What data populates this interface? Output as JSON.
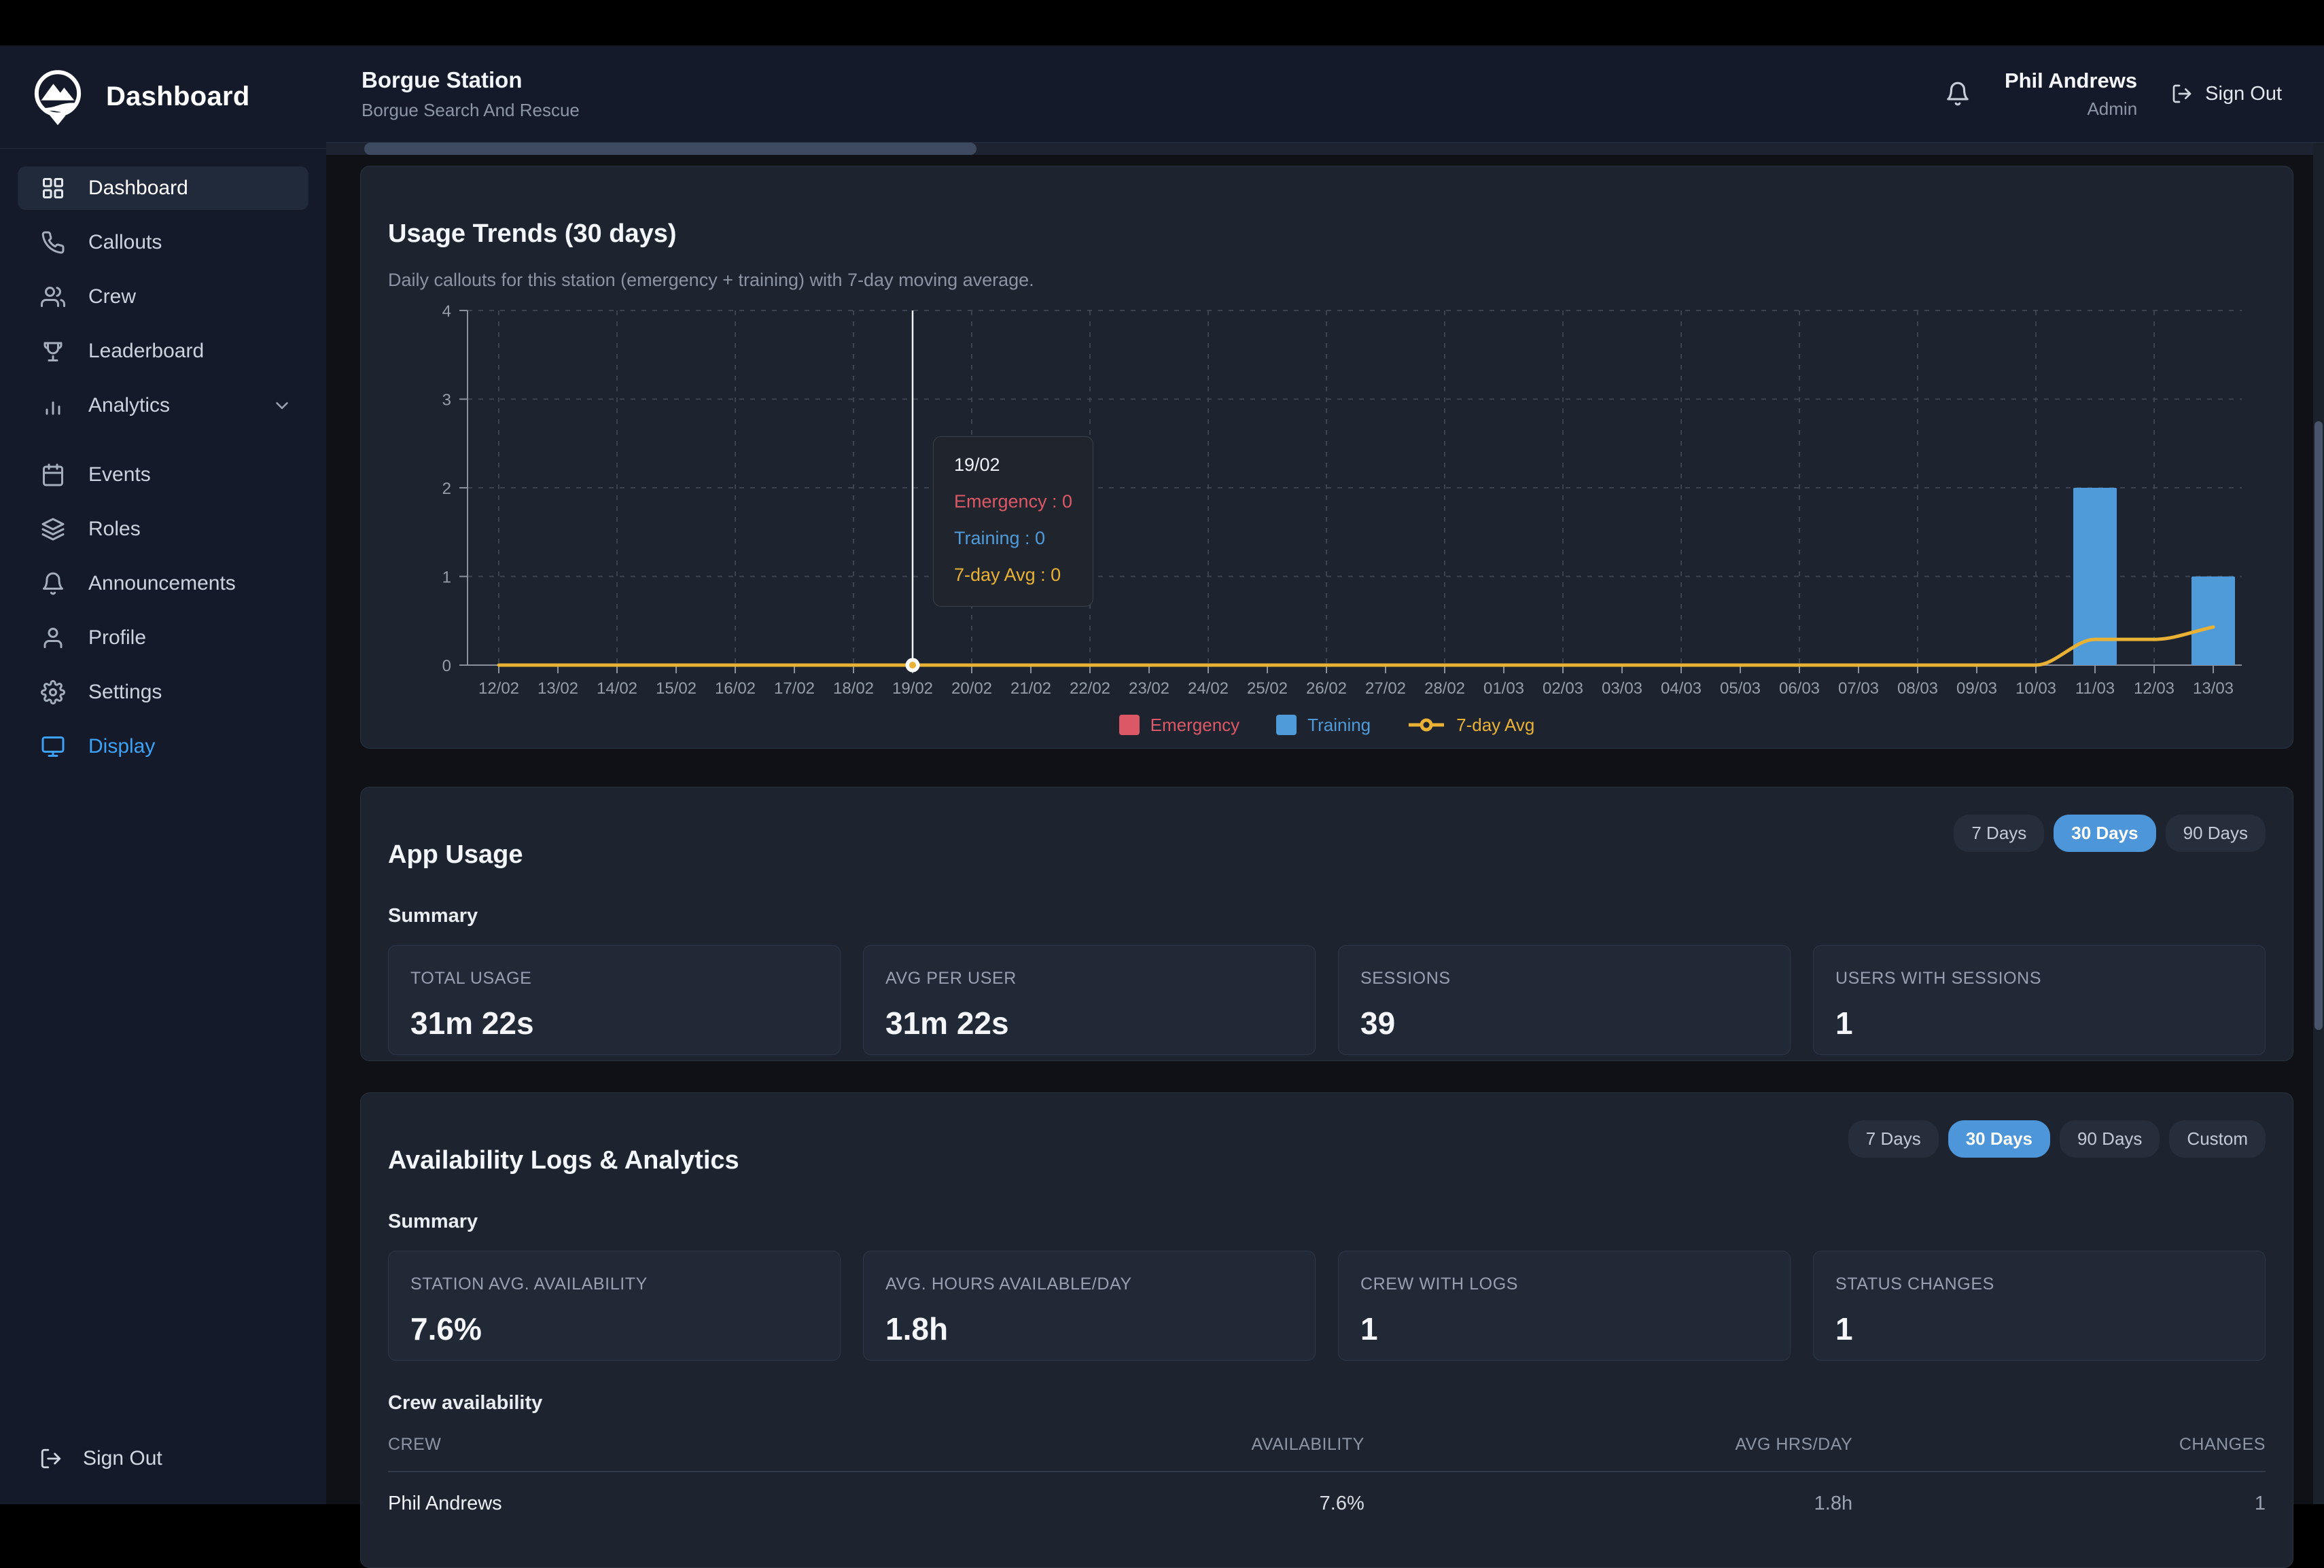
{
  "colors": {
    "accent_blue": "#4d96d9",
    "sidebar_highlight_blue": "#3da2f5",
    "emergency_red": "#dc5866",
    "training_blue": "#4f9bd9",
    "avg_yellow": "#e9b235"
  },
  "sidebar": {
    "title": "Dashboard",
    "items": [
      {
        "label": "Dashboard",
        "icon": "grid",
        "active": true
      },
      {
        "label": "Callouts",
        "icon": "phone"
      },
      {
        "label": "Crew",
        "icon": "users"
      },
      {
        "label": "Leaderboard",
        "icon": "trophy"
      },
      {
        "label": "Analytics",
        "icon": "bar-chart",
        "chevron": true
      },
      {
        "label": "Events",
        "icon": "calendar",
        "group_gap": true
      },
      {
        "label": "Roles",
        "icon": "layers"
      },
      {
        "label": "Announcements",
        "icon": "bell"
      },
      {
        "label": "Profile",
        "icon": "user"
      },
      {
        "label": "Settings",
        "icon": "gear"
      },
      {
        "label": "Display",
        "icon": "monitor",
        "highlight": true
      }
    ],
    "sign_out_label": "Sign Out"
  },
  "header": {
    "station_name": "Borgue Station",
    "station_subtitle": "Borgue Search And Rescue",
    "user_name": "Phil Andrews",
    "user_role": "Admin",
    "sign_out_label": "Sign Out"
  },
  "usage_trends": {
    "title": "Usage Trends (30 days)",
    "subtitle": "Daily callouts for this station (emergency + training) with 7-day moving average."
  },
  "chart_data": {
    "type": "bar",
    "title": "Usage Trends (30 days)",
    "x": [
      "12/02",
      "13/02",
      "14/02",
      "15/02",
      "16/02",
      "17/02",
      "18/02",
      "19/02",
      "20/02",
      "21/02",
      "22/02",
      "23/02",
      "24/02",
      "25/02",
      "26/02",
      "27/02",
      "28/02",
      "01/03",
      "02/03",
      "03/03",
      "04/03",
      "05/03",
      "06/03",
      "07/03",
      "08/03",
      "09/03",
      "10/03",
      "11/03",
      "12/03",
      "13/03"
    ],
    "series": [
      {
        "name": "Emergency",
        "type": "bar",
        "color": "#dc5866",
        "values": [
          0,
          0,
          0,
          0,
          0,
          0,
          0,
          0,
          0,
          0,
          0,
          0,
          0,
          0,
          0,
          0,
          0,
          0,
          0,
          0,
          0,
          0,
          0,
          0,
          0,
          0,
          0,
          0,
          0,
          0
        ]
      },
      {
        "name": "Training",
        "type": "bar",
        "color": "#4f9bd9",
        "values": [
          0,
          0,
          0,
          0,
          0,
          0,
          0,
          0,
          0,
          0,
          0,
          0,
          0,
          0,
          0,
          0,
          0,
          0,
          0,
          0,
          0,
          0,
          0,
          0,
          0,
          0,
          0,
          2,
          0,
          1
        ]
      },
      {
        "name": "7-day Avg",
        "type": "line",
        "color": "#e9b235",
        "values": [
          0,
          0,
          0,
          0,
          0,
          0,
          0,
          0,
          0,
          0,
          0,
          0,
          0,
          0,
          0,
          0,
          0,
          0,
          0,
          0,
          0,
          0,
          0,
          0,
          0,
          0,
          0,
          0.29,
          0.29,
          0.43
        ]
      }
    ],
    "ylim": [
      0,
      4
    ],
    "yticks": [
      0,
      1,
      2,
      3,
      4
    ],
    "grid": true,
    "legend_position": "bottom",
    "crosshair_index": 7,
    "tooltip": {
      "title": "19/02",
      "rows": [
        {
          "label": "Emergency",
          "value": "0"
        },
        {
          "label": "Training",
          "value": "0"
        },
        {
          "label": "7-day Avg",
          "value": "0"
        }
      ]
    }
  },
  "app_usage": {
    "title": "App Usage",
    "filters": [
      {
        "label": "7 Days",
        "active": false
      },
      {
        "label": "30 Days",
        "active": true
      },
      {
        "label": "90 Days",
        "active": false
      }
    ],
    "summary_label": "Summary",
    "cards": [
      {
        "label": "TOTAL USAGE",
        "value": "31m 22s"
      },
      {
        "label": "AVG PER USER",
        "value": "31m 22s"
      },
      {
        "label": "SESSIONS",
        "value": "39"
      },
      {
        "label": "USERS WITH SESSIONS",
        "value": "1"
      }
    ]
  },
  "availability": {
    "title": "Availability Logs & Analytics",
    "filters": [
      {
        "label": "7 Days",
        "active": false
      },
      {
        "label": "30 Days",
        "active": true
      },
      {
        "label": "90 Days",
        "active": false
      },
      {
        "label": "Custom",
        "active": false
      }
    ],
    "summary_label": "Summary",
    "cards": [
      {
        "label": "STATION AVG. AVAILABILITY",
        "value": "7.6%"
      },
      {
        "label": "AVG. HOURS AVAILABLE/DAY",
        "value": "1.8h"
      },
      {
        "label": "CREW WITH LOGS",
        "value": "1"
      },
      {
        "label": "STATUS CHANGES",
        "value": "1"
      }
    ],
    "table": {
      "title": "Crew availability",
      "columns": [
        "CREW",
        "AVAILABILITY",
        "AVG HRS/DAY",
        "CHANGES"
      ],
      "rows": [
        [
          "Phil Andrews",
          "7.6%",
          "1.8h",
          "1"
        ]
      ]
    }
  }
}
